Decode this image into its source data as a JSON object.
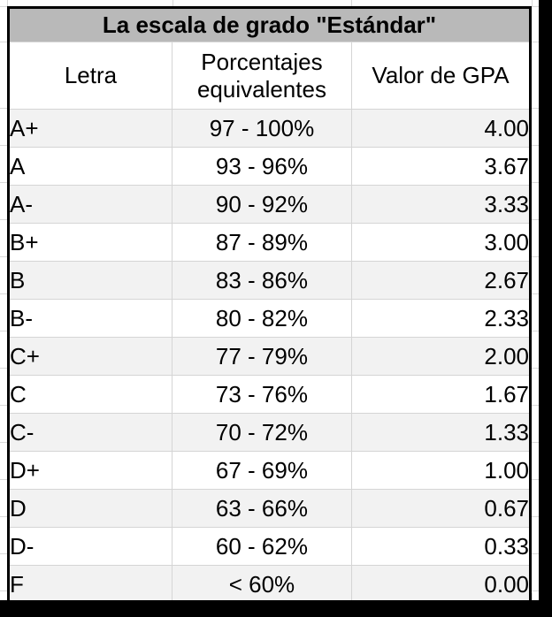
{
  "table": {
    "title": "La escala de grado \"Estándar\"",
    "columns": {
      "letter": "Letra",
      "percent": "Porcentajes equivalentes",
      "gpa": "Valor de GPA"
    },
    "rows": [
      {
        "letter": "A+",
        "percent": "97 - 100%",
        "gpa": "4.00"
      },
      {
        "letter": "A",
        "percent": "93 - 96%",
        "gpa": "3.67"
      },
      {
        "letter": "A-",
        "percent": "90 - 92%",
        "gpa": "3.33"
      },
      {
        "letter": "B+",
        "percent": "87 - 89%",
        "gpa": "3.00"
      },
      {
        "letter": "B",
        "percent": "83 - 86%",
        "gpa": "2.67"
      },
      {
        "letter": "B-",
        "percent": "80 - 82%",
        "gpa": "2.33"
      },
      {
        "letter": "C+",
        "percent": "77 - 79%",
        "gpa": "2.00"
      },
      {
        "letter": "C",
        "percent": "73 - 76%",
        "gpa": "1.67"
      },
      {
        "letter": "C-",
        "percent": "70 - 72%",
        "gpa": "1.33"
      },
      {
        "letter": "D+",
        "percent": "67 - 69%",
        "gpa": "1.00"
      },
      {
        "letter": "D",
        "percent": "63 - 66%",
        "gpa": "0.67"
      },
      {
        "letter": "D-",
        "percent": "60 - 62%",
        "gpa": "0.33"
      },
      {
        "letter": "F",
        "percent": "< 60%",
        "gpa": "0.00"
      }
    ]
  },
  "colors": {
    "title_background": "#b9b9b9",
    "alt_row_background": "#f2f2f2",
    "grid_line": "#d9d9d9",
    "table_border": "#000000",
    "canvas_background": "#ffffff",
    "surround_background": "#000000",
    "text": "#000000"
  }
}
